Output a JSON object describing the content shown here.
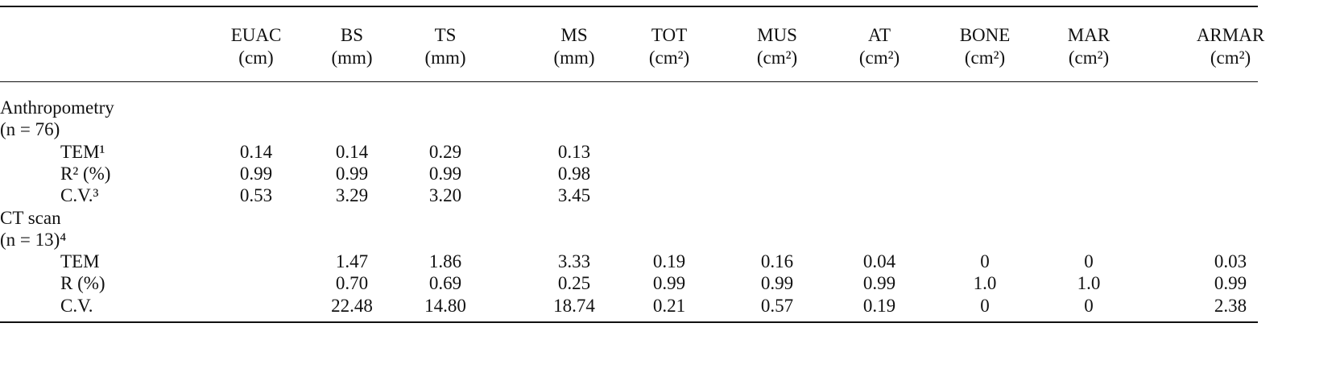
{
  "table": {
    "columns": [
      {
        "name": "EUAC",
        "unit": "(cm)"
      },
      {
        "name": "BS",
        "unit": "(mm)"
      },
      {
        "name": "TS",
        "unit": "(mm)"
      },
      {
        "name": "MS",
        "unit": "(mm)"
      },
      {
        "name": "TOT",
        "unit": "(cm²)"
      },
      {
        "name": "MUS",
        "unit": "(cm²)"
      },
      {
        "name": "AT",
        "unit": "(cm²)"
      },
      {
        "name": "BONE",
        "unit": "(cm²)"
      },
      {
        "name": "MAR",
        "unit": "(cm²)"
      },
      {
        "name": "ARMAR",
        "unit": "(cm²)"
      }
    ],
    "sections": [
      {
        "title": [
          "Anthropometry",
          "(n = 76)"
        ],
        "rows": [
          {
            "label": "TEM¹",
            "values": [
              "0.14",
              "0.14",
              "0.29",
              "0.13",
              null,
              null,
              null,
              null,
              null,
              null
            ]
          },
          {
            "label": "R² (%)",
            "values": [
              "0.99",
              "0.99",
              "0.99",
              "0.98",
              null,
              null,
              null,
              null,
              null,
              null
            ]
          },
          {
            "label": "C.V.³",
            "values": [
              "0.53",
              "3.29",
              "3.20",
              "3.45",
              null,
              null,
              null,
              null,
              null,
              null
            ]
          }
        ]
      },
      {
        "title": [
          "CT scan",
          "(n = 13)⁴"
        ],
        "rows": [
          {
            "label": "TEM",
            "values": [
              null,
              "1.47",
              "1.86",
              "3.33",
              "0.19",
              "0.16",
              "0.04",
              "0",
              "0",
              "0.03"
            ]
          },
          {
            "label": "R (%)",
            "values": [
              null,
              "0.70",
              "0.69",
              "0.25",
              "0.99",
              "0.99",
              "0.99",
              "1.0",
              "1.0",
              "0.99"
            ]
          },
          {
            "label": "C.V.",
            "values": [
              null,
              "22.48",
              "14.80",
              "18.74",
              "0.21",
              "0.57",
              "0.19",
              "0",
              "0",
              "2.38"
            ]
          }
        ]
      }
    ]
  }
}
